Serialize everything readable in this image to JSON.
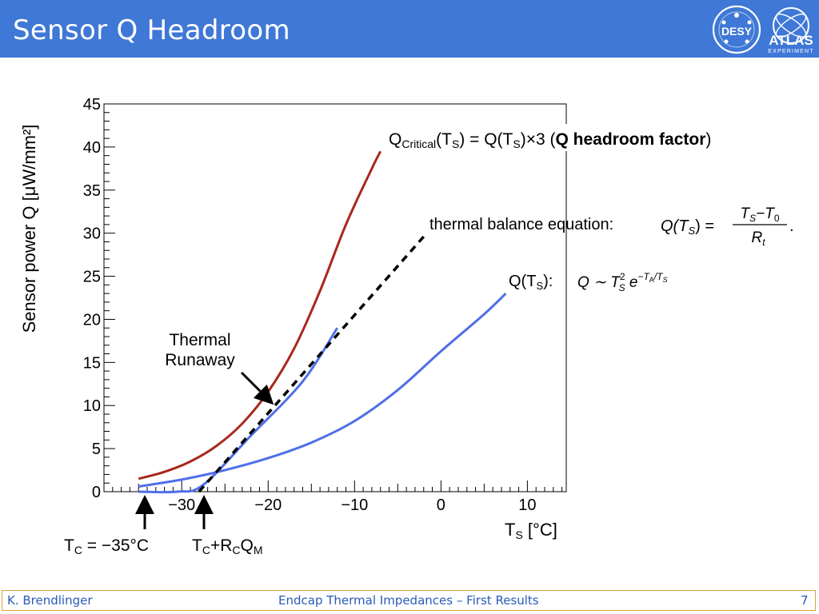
{
  "slide": {
    "title": "Sensor Q Headroom",
    "footer_author": "K. Brendlinger",
    "footer_title": "Endcap Thermal Impedances – First Results",
    "page_number": "7"
  },
  "logos": {
    "desy": "DESY",
    "atlas": "ATLAS",
    "atlas_sub": "EXPERIMENT"
  },
  "colors": {
    "header": "#3f78d6",
    "critical_curve": "#a8281c",
    "q_curve": "#4f6fe8",
    "balance_line": "#000000",
    "footer_border": "#d8a040",
    "footer_text": "#2a5ab8"
  },
  "chart_data": {
    "type": "line",
    "xlabel": "T",
    "xlabel_sub": "S",
    "xlabel_unit": " [°C]",
    "ylabel": "Sensor power Q [μW/mm²]",
    "xlim": [
      -39,
      14.5
    ],
    "ylim": [
      0,
      45
    ],
    "x_ticks": [
      -30,
      -20,
      -10,
      0,
      10
    ],
    "x_tick_labels": [
      "−30",
      "−20",
      "−10",
      "0",
      "10"
    ],
    "y_ticks": [
      0,
      5,
      10,
      15,
      20,
      25,
      30,
      35,
      40,
      45
    ],
    "y_tick_labels": [
      "0",
      "5",
      "10",
      "15",
      "20",
      "25",
      "30",
      "35",
      "40",
      "45"
    ],
    "series": [
      {
        "key": "critical",
        "x": [
          -35,
          -32,
          -29,
          -26,
          -23,
          -20,
          -17,
          -14,
          -11,
          -8,
          -7
        ],
        "y": [
          1.5,
          2.3,
          3.5,
          5.3,
          7.9,
          11.6,
          16.6,
          23.3,
          31.0,
          37.5,
          39.5
        ]
      },
      {
        "key": "q",
        "x": [
          -35,
          -30,
          -25,
          -20,
          -15,
          -10,
          -5,
          0,
          5,
          7.5
        ],
        "y": [
          0.6,
          1.4,
          2.5,
          3.9,
          5.7,
          8.2,
          11.8,
          16.3,
          20.6,
          23.0
        ]
      },
      {
        "key": "q_shifted",
        "x": [
          -35,
          -30.5,
          -27.5,
          -22,
          -16,
          -12
        ],
        "y": [
          0,
          0,
          0.8,
          6.5,
          12.8,
          19.0
        ]
      },
      {
        "key": "balance",
        "x": [
          -28,
          -2
        ],
        "y": [
          0,
          29.6
        ]
      }
    ],
    "annotations": {
      "critical_label_prefix": "Q",
      "critical_label_sub": "Critical",
      "critical_label_mid1": "(T",
      "critical_label_sub2": "S",
      "critical_label_mid2": ") = Q(T",
      "critical_label_sub3": "S",
      "critical_label_mid3": ")×3 (",
      "critical_label_bold": "Q headroom factor",
      "critical_label_end": ")",
      "balance_label": "thermal balance equation:",
      "balance_eq_lhs": "Q(T",
      "balance_eq_lhs_sub": "S",
      "balance_eq_lhs_end": ") =",
      "balance_eq_num": "T",
      "balance_eq_num_sub": "S",
      "balance_eq_num_mid": "−T",
      "balance_eq_num_sub2": "0",
      "balance_eq_den": "R",
      "balance_eq_den_sub": "t",
      "balance_eq_end": ".",
      "q_label": "Q(T",
      "q_label_sub": "S",
      "q_label_end": "):",
      "q_formula_q": "Q ∼ T",
      "q_formula_sup": "2",
      "q_formula_sub": "S",
      "q_formula_e": " e",
      "q_formula_exp": "−T",
      "q_formula_exp_sub": "A",
      "q_formula_exp_end": "/T",
      "q_formula_exp_sub2": "S",
      "runaway_line1": "Thermal",
      "runaway_line2": "Runaway",
      "arrow1_label_pre": "T",
      "arrow1_label_sub": "C",
      "arrow1_label_post": " = −35°C",
      "arrow2_label_pre": "T",
      "arrow2_label_sub": "C",
      "arrow2_label_mid": "+R",
      "arrow2_label_sub2": "C",
      "arrow2_label_mid2": "Q",
      "arrow2_label_sub3": "M"
    }
  }
}
